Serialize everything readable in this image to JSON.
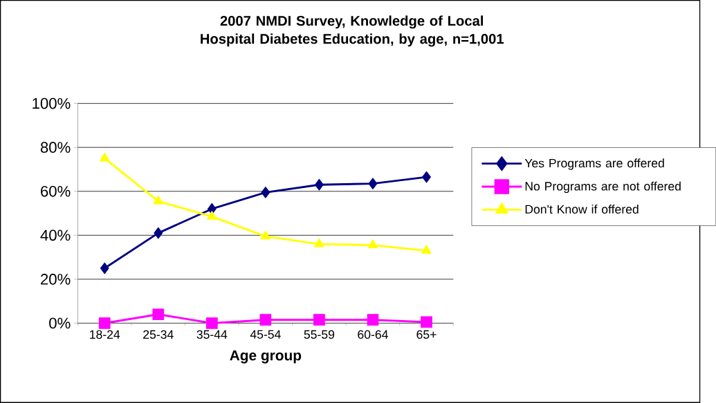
{
  "chart_data": {
    "type": "line",
    "title": "2007 NMDI Survey, Knowledge of Local Hospital Diabetes Education, by age, n=1,001",
    "xlabel": "Age group",
    "categories": [
      "18-24",
      "25-34",
      "35-44",
      "45-54",
      "55-59",
      "60-64",
      "65+"
    ],
    "series": [
      {
        "name": "Yes Programs are offered",
        "color": "#000080",
        "marker": "diamond",
        "values": [
          25,
          41,
          52,
          59.5,
          63,
          63.5,
          66.5
        ]
      },
      {
        "name": "No Programs are not offered",
        "color": "#ff00ff",
        "marker": "square",
        "values": [
          0,
          4,
          0,
          1.5,
          1.5,
          1.5,
          0.5
        ]
      },
      {
        "name": "Don't Know if offered",
        "color": "#ffff00",
        "marker": "triangle",
        "values": [
          75,
          55.5,
          48.5,
          39.5,
          36,
          35.5,
          33
        ]
      }
    ],
    "ylim": [
      0,
      100
    ],
    "yticks": [
      {
        "value": 0,
        "label": "0%"
      },
      {
        "value": 20,
        "label": "20%"
      },
      {
        "value": 40,
        "label": "40%"
      },
      {
        "value": 60,
        "label": "60%"
      },
      {
        "value": 80,
        "label": "80%"
      },
      {
        "value": 100,
        "label": "100%"
      }
    ],
    "grid": "y",
    "legend": "right",
    "line_style": "solid"
  }
}
